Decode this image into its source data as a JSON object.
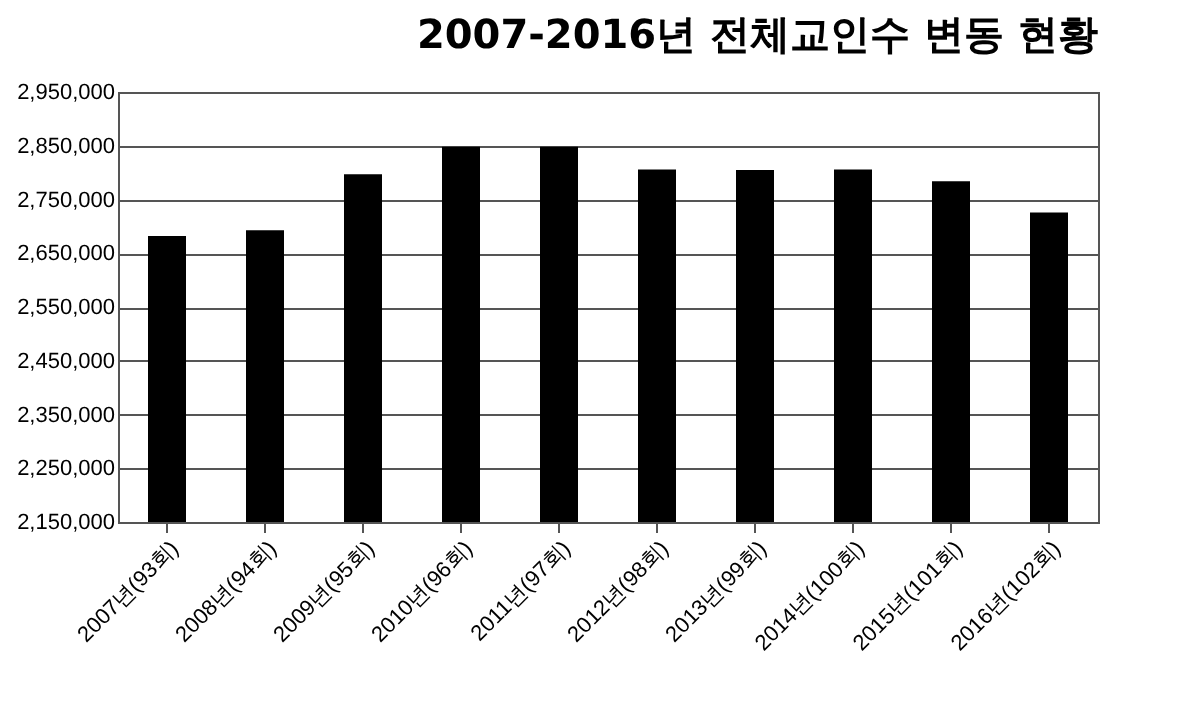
{
  "chart_data": {
    "type": "bar",
    "title": "2007-2016년 전체교인수 변동 현황",
    "categories": [
      "2007년(93회)",
      "2008년(94회)",
      "2009년(95회)",
      "2010년(96회)",
      "2011년(97회)",
      "2012년(98회)",
      "2013년(99회)",
      "2014년(100회)",
      "2015년(101회)",
      "2016년(102회)"
    ],
    "values": [
      2682000,
      2693000,
      2797000,
      2848000,
      2848000,
      2806000,
      2805000,
      2806000,
      2784000,
      2726000
    ],
    "color": "#000000",
    "ylim": [
      2150000,
      2950000
    ],
    "yticks": [
      {
        "value": 2150000,
        "label": "2,150,000"
      },
      {
        "value": 2250000,
        "label": "2,250,000"
      },
      {
        "value": 2350000,
        "label": "2,350,000"
      },
      {
        "value": 2450000,
        "label": "2,450,000"
      },
      {
        "value": 2550000,
        "label": "2,550,000"
      },
      {
        "value": 2650000,
        "label": "2,650,000"
      },
      {
        "value": 2750000,
        "label": "2,750,000"
      },
      {
        "value": 2850000,
        "label": "2,850,000"
      },
      {
        "value": 2950000,
        "label": "2,950,000"
      }
    ],
    "grid": "y"
  }
}
